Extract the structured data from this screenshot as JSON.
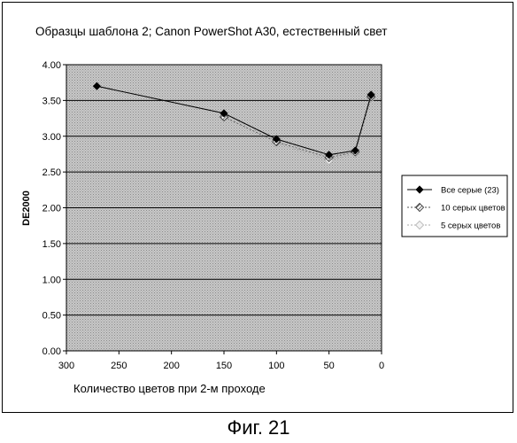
{
  "caption": "Фиг. 21",
  "chart_data": {
    "type": "line",
    "title": "Образцы шаблона 2; Canon PowerShot A30, естественный свет",
    "xlabel": "Количество цветов при 2-м проходе",
    "ylabel": "DE2000",
    "xlim": [
      300,
      0
    ],
    "x_reversed": true,
    "ylim": [
      0,
      4
    ],
    "x_ticks": [
      "300",
      "250",
      "200",
      "150",
      "100",
      "50",
      "0"
    ],
    "y_ticks": [
      "0.00",
      "0.50",
      "1.00",
      "1.50",
      "2.00",
      "2.50",
      "3.00",
      "3.50",
      "4.00"
    ],
    "grid": "horizontal",
    "legend_position": "right",
    "series": [
      {
        "name": "Все серые (23)",
        "marker": "diamond",
        "color": "#000000",
        "x": [
          271,
          150,
          100,
          50,
          25,
          10
        ],
        "y": [
          3.7,
          3.32,
          2.96,
          2.74,
          2.8,
          3.58
        ]
      },
      {
        "name": "10 серых цветов",
        "marker": "hatched-diamond",
        "color": "#555555",
        "x": [
          150,
          100,
          50,
          25,
          10
        ],
        "y": [
          3.27,
          2.92,
          2.7,
          2.78,
          3.55
        ]
      },
      {
        "name": "5 серых цветов",
        "marker": "light-diamond",
        "color": "#aaaaaa",
        "x": [
          100,
          50,
          25,
          10
        ],
        "y": [
          2.9,
          2.66,
          2.76,
          3.53
        ]
      }
    ]
  }
}
